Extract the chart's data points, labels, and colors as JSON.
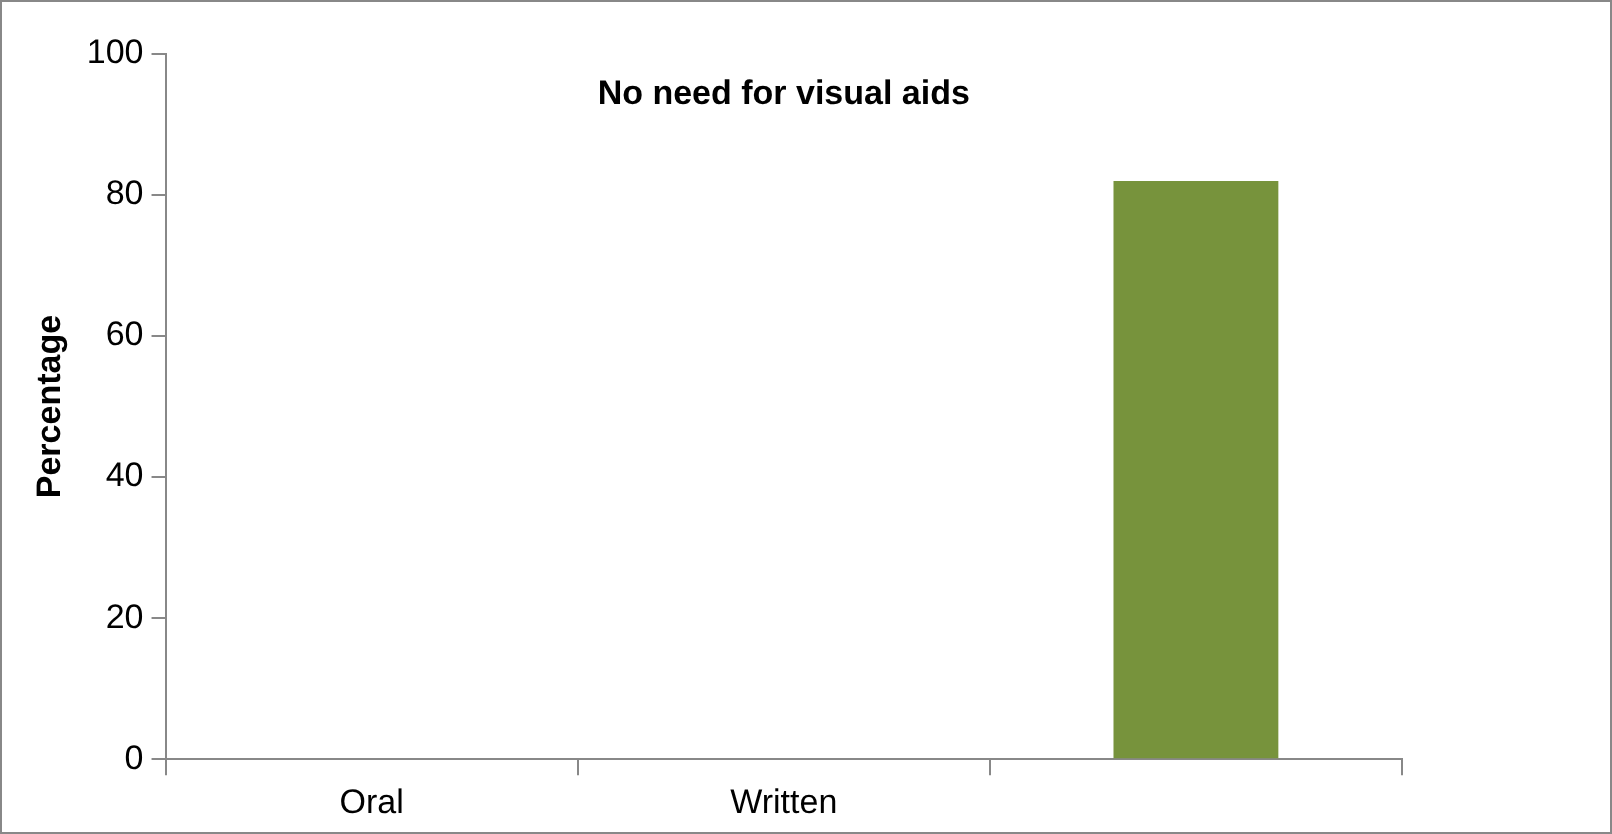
{
  "chart_data": {
    "type": "bar",
    "title": "No need for visual aids",
    "ylabel": "Percentage",
    "categories": [
      "Oral",
      "Written",
      null
    ],
    "values": [
      0,
      0,
      82
    ],
    "color": "#77933c",
    "ylim": [
      0,
      100
    ],
    "yticks": [
      0,
      20,
      40,
      60,
      80,
      100
    ],
    "grid": false,
    "legend": false
  }
}
